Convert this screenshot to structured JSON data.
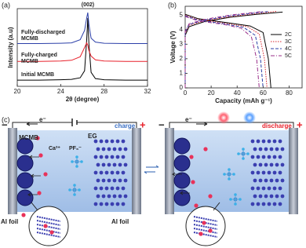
{
  "panels": [
    "(a)",
    "(b)",
    "(c)"
  ],
  "chart_data": [
    {
      "type": "line",
      "annotation": "(002)",
      "annotation_x": 26.5,
      "xlabel": "2θ (degree)",
      "ylabel": "Intensity (a.u)",
      "x": [
        20,
        22,
        24,
        25,
        25.8,
        26.2,
        26.4,
        26.5,
        26.6,
        26.8,
        27.2,
        28,
        30,
        32
      ],
      "xlim": [
        20,
        32
      ],
      "xticks": [
        20,
        24,
        28,
        32
      ],
      "ylim": [
        0,
        100
      ],
      "series": [
        {
          "name": "Initial MCMB",
          "color": "#000000",
          "values": [
            8,
            8,
            8.5,
            9,
            11,
            20,
            60,
            88,
            55,
            18,
            10,
            8.5,
            8,
            8
          ]
        },
        {
          "name": "Fully-charged MCMB",
          "color": "#e8212b",
          "values": [
            32,
            32,
            32.5,
            33.5,
            38,
            50,
            56,
            53,
            46,
            39,
            34,
            32.5,
            32,
            32
          ]
        },
        {
          "name": "Fully-discharged MCMB",
          "color": "#2b3fa8",
          "values": [
            55,
            55,
            55.5,
            56,
            60,
            72,
            88,
            95,
            80,
            62,
            57,
            55.5,
            55,
            55
          ]
        }
      ]
    },
    {
      "type": "line",
      "xlabel": "Capacity (mAh g⁻¹)",
      "ylabel": "Voltage (V)",
      "xlim": [
        0,
        90
      ],
      "xticks": [
        0,
        20,
        40,
        60,
        80
      ],
      "ylim": [
        0,
        5.6
      ],
      "yticks": [
        0,
        1,
        2,
        3,
        4,
        5
      ],
      "legend": "right",
      "series": [
        {
          "name": "2C",
          "color": "#000000",
          "dash": "",
          "x": [
            0,
            0,
            3,
            15,
            35,
            55,
            75,
            null,
            0,
            10,
            30,
            50,
            60,
            64,
            66
          ],
          "values": [
            0,
            3.6,
            4.2,
            4.55,
            4.85,
            5.05,
            5.2,
            null,
            5.05,
            4.75,
            4.5,
            4.25,
            3.8,
            2.0,
            0
          ]
        },
        {
          "name": "3C",
          "color": "#d6262e",
          "dash": "1.5 1.5",
          "x": [
            0,
            0,
            3,
            15,
            35,
            55,
            70,
            null,
            0,
            10,
            30,
            48,
            57,
            61,
            63
          ],
          "values": [
            0,
            3.7,
            4.3,
            4.6,
            4.9,
            5.1,
            5.25,
            null,
            5.0,
            4.7,
            4.45,
            4.2,
            3.7,
            2.0,
            0
          ]
        },
        {
          "name": "4C",
          "color": "#2a3ea6",
          "dash": "4 2",
          "x": [
            0,
            0,
            3,
            15,
            35,
            55,
            65,
            null,
            0,
            10,
            30,
            45,
            54,
            58,
            60
          ],
          "values": [
            0,
            3.8,
            4.35,
            4.65,
            4.95,
            5.15,
            5.25,
            null,
            4.95,
            4.65,
            4.4,
            4.15,
            3.6,
            2.0,
            0
          ]
        },
        {
          "name": "5C",
          "color": "#9b2f8a",
          "dash": "5 2 1 2",
          "x": [
            0,
            0,
            3,
            15,
            35,
            50,
            60,
            null,
            0,
            10,
            30,
            43,
            51,
            55,
            57
          ],
          "values": [
            0,
            3.9,
            4.4,
            4.7,
            5.0,
            5.15,
            5.25,
            null,
            4.9,
            4.6,
            4.35,
            4.1,
            3.5,
            2.0,
            0
          ]
        }
      ]
    }
  ],
  "schematic": {
    "left": {
      "electron": "e⁻",
      "state": "charge",
      "anode": "MCMB",
      "cathode": "EG",
      "cation": "Ca²⁺",
      "anion": "PF₆⁻",
      "anode_foil": "Al foil",
      "cathode_foil": "Al foil",
      "minus": "−",
      "plus": "+"
    },
    "right": {
      "electron": "e⁻",
      "state": "discharge",
      "minus": "−",
      "plus": "+"
    }
  }
}
